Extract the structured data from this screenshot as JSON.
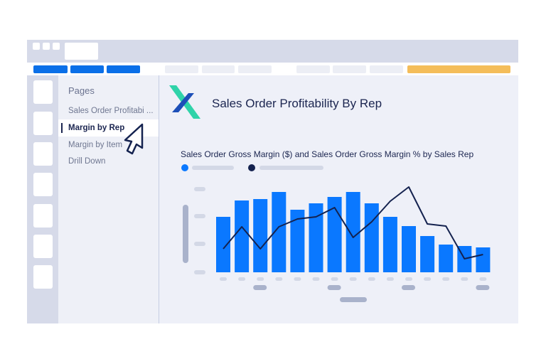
{
  "pages_panel": {
    "heading": "Pages",
    "items": [
      {
        "label": "Sales Order Profitabi ...",
        "active": false
      },
      {
        "label": "Margin by Rep",
        "active": true
      },
      {
        "label": "Margin by Item",
        "active": false
      },
      {
        "label": "Drill Down",
        "active": false
      }
    ]
  },
  "report": {
    "title": "Sales Order Profitability By Rep",
    "logo": "x-logo"
  },
  "colors": {
    "accent": "#0a78ff",
    "line": "#14224f",
    "highlight_tab": "#f4bd5a",
    "nav_tab": "#0a6fe8"
  },
  "chart_data": {
    "type": "bar+line",
    "title": "Sales Order Gross Margin ($) and Sales Order Gross Margin % by Sales Rep",
    "ylim": [
      0,
      120
    ],
    "series": [
      {
        "type": "bar",
        "color": "#0a78ff",
        "values": [
          78,
          101,
          103,
          113,
          88,
          97,
          106,
          113,
          97,
          78,
          65,
          51,
          39,
          37,
          35
        ]
      },
      {
        "type": "line",
        "color": "#14224f",
        "values": [
          33,
          64,
          33,
          64,
          75,
          78,
          91,
          49,
          71,
          100,
          120,
          68,
          65,
          19,
          25
        ]
      }
    ],
    "grid": false,
    "legend": "top-left"
  }
}
